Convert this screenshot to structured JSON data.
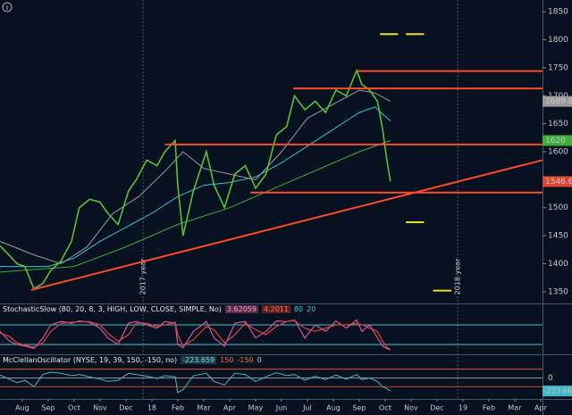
{
  "chart_data": [
    {
      "type": "line",
      "xlim": [
        -0.86,
        20.07
      ],
      "xticks": [
        {
          "value": 0,
          "label": "Aug"
        },
        {
          "value": 1,
          "label": "Sep"
        },
        {
          "value": 2,
          "label": "Oct"
        },
        {
          "value": 3,
          "label": "Nov"
        },
        {
          "value": 4,
          "label": "Dec"
        },
        {
          "value": 5,
          "label": "18"
        },
        {
          "value": 6,
          "label": "Feb"
        },
        {
          "value": 7,
          "label": "Mar"
        },
        {
          "value": 8,
          "label": "Apr"
        },
        {
          "value": 9,
          "label": "May"
        },
        {
          "value": 10,
          "label": "Jun"
        },
        {
          "value": 11,
          "label": "Jul"
        },
        {
          "value": 12,
          "label": "Aug"
        },
        {
          "value": 13,
          "label": "Sep"
        },
        {
          "value": 14,
          "label": "Oct"
        },
        {
          "value": 15,
          "label": "Nov"
        },
        {
          "value": 16,
          "label": "Dec"
        },
        {
          "value": 17,
          "label": "19"
        },
        {
          "value": 18,
          "label": "Feb"
        },
        {
          "value": 19,
          "label": "Mar"
        },
        {
          "value": 20,
          "label": "Apr"
        }
      ],
      "ylim": [
        1329,
        1871
      ],
      "yticks": [
        1350,
        1400,
        1450,
        1500,
        1550,
        1600,
        1650,
        1700,
        1750,
        1800,
        1850
      ],
      "grid": false,
      "series": [
        {
          "color": "#5cbf3a",
          "label_last": true,
          "label_bg": "#e0452e",
          "width": 1.6,
          "x": [
            -0.86,
            -0.5,
            -0.2,
            0.1,
            0.45,
            0.8,
            1.1,
            1.5,
            1.9,
            2.2,
            2.6,
            3.0,
            3.3,
            3.7,
            4.1,
            4.4,
            4.8,
            5.2,
            5.5,
            5.9,
            6.0,
            6.2,
            6.6,
            7.1,
            7.4,
            7.8,
            8.2,
            8.6,
            9.0,
            9.4,
            9.8,
            10.2,
            10.5,
            10.9,
            11.3,
            11.7,
            12.1,
            12.5,
            12.9,
            13.1,
            13.4,
            13.7,
            13.9,
            14.05,
            14.2
          ],
          "values": [
            1432,
            1415,
            1400,
            1395,
            1355,
            1365,
            1388,
            1405,
            1440,
            1500,
            1515,
            1510,
            1490,
            1470,
            1530,
            1550,
            1585,
            1575,
            1600,
            1620,
            1540,
            1450,
            1530,
            1600,
            1540,
            1500,
            1560,
            1575,
            1535,
            1560,
            1630,
            1645,
            1700,
            1675,
            1690,
            1670,
            1710,
            1700,
            1745,
            1720,
            1710,
            1690,
            1640,
            1590,
            1546.68
          ]
        },
        {
          "color": "#9a9a9a",
          "label_last": true,
          "label_bg": "#9a9a9a",
          "width": 1,
          "x": [
            -0.86,
            0.5,
            1.5,
            2.5,
            3.5,
            4.5,
            5.5,
            6.2,
            7,
            8,
            9,
            10,
            11,
            12,
            13,
            13.6,
            14.2
          ],
          "values": [
            1440,
            1415,
            1400,
            1430,
            1490,
            1520,
            1565,
            1600,
            1570,
            1560,
            1550,
            1600,
            1660,
            1685,
            1710,
            1705,
            1689.84
          ]
        },
        {
          "color": "#35c6d6",
          "label_last": false,
          "width": 1,
          "x": [
            -0.86,
            1,
            2,
            3,
            4,
            5,
            6,
            7,
            8,
            9,
            10,
            11,
            12,
            13,
            13.6,
            14.2
          ],
          "values": [
            1395,
            1395,
            1410,
            1440,
            1465,
            1490,
            1520,
            1540,
            1545,
            1555,
            1580,
            1610,
            1640,
            1670,
            1680,
            1655
          ]
        },
        {
          "color": "#3fae3a",
          "label_last": true,
          "label_bg": "#3fae3a",
          "width": 1,
          "x": [
            -0.86,
            2,
            4,
            6,
            8,
            10,
            12,
            13,
            14.2
          ],
          "values": [
            1385,
            1395,
            1430,
            1470,
            1500,
            1540,
            1580,
            1600,
            1620
          ]
        }
      ],
      "lines": [
        {
          "color": "#ff4a2a",
          "x": [
            0.34,
            20.2
          ],
          "values": [
            1353,
            1585
          ]
        },
        {
          "color": "#ff4a2a",
          "x": [
            5.5,
            20.2
          ],
          "values": [
            1613,
            1613
          ]
        },
        {
          "color": "#ff4a2a",
          "x": [
            8.8,
            20.2
          ],
          "values": [
            1527,
            1527
          ]
        },
        {
          "color": "#ff4a2a",
          "x": [
            10.45,
            20.2
          ],
          "values": [
            1713,
            1713
          ]
        },
        {
          "color": "#ff4a2a",
          "x": [
            12.9,
            20.2
          ],
          "values": [
            1744,
            1744
          ]
        },
        {
          "color": "#f0e020",
          "x": [
            13.8,
            14.5
          ],
          "values": [
            1810,
            1810
          ]
        },
        {
          "color": "#f0e020",
          "x": [
            14.8,
            15.5
          ],
          "values": [
            1810,
            1810
          ]
        },
        {
          "color": "#f0e020",
          "x": [
            14.8,
            15.5
          ],
          "values": [
            1474,
            1474
          ]
        },
        {
          "color": "#f0e020",
          "x": [
            15.85,
            16.55
          ],
          "values": [
            1352,
            1352
          ]
        }
      ],
      "markers": [
        {
          "x": 4.66,
          "label": "2017 year"
        },
        {
          "x": 16.8,
          "label": "2018 year"
        }
      ]
    },
    {
      "type": "line",
      "title": "StochasticSlow (80, 20, 8, 3, HIGH, LOW, CLOSE, SIMPLE, No)",
      "xlim": [
        -0.86,
        20.07
      ],
      "ylim": [
        -10,
        140
      ],
      "yticks": [
        80,
        20
      ],
      "series": [
        {
          "color": "#d3559c",
          "header_bg": "#5a2a45",
          "x": [
            -0.86,
            -0.5,
            -0.2,
            0.1,
            0.45,
            0.8,
            1.1,
            1.5,
            1.9,
            2.2,
            2.6,
            3.0,
            3.3,
            3.7,
            4.1,
            4.4,
            4.8,
            5.2,
            5.5,
            5.9,
            6.0,
            6.2,
            6.6,
            7.1,
            7.4,
            7.8,
            8.2,
            8.6,
            9.0,
            9.4,
            9.8,
            10.2,
            10.5,
            10.9,
            11.3,
            11.7,
            12.1,
            12.5,
            12.9,
            13.1,
            13.4,
            13.7,
            13.9,
            14.05,
            14.2
          ],
          "values": [
            60,
            30,
            20,
            15,
            8,
            40,
            80,
            90,
            85,
            92,
            88,
            70,
            40,
            20,
            85,
            90,
            80,
            70,
            90,
            85,
            20,
            10,
            60,
            90,
            40,
            15,
            85,
            90,
            40,
            60,
            92,
            90,
            95,
            40,
            80,
            60,
            92,
            70,
            95,
            60,
            80,
            40,
            15,
            8,
            3.62059
          ]
        },
        {
          "color": "#e0403a",
          "header_bg": "#5a2020",
          "x": [
            -0.86,
            -0.5,
            -0.2,
            0.1,
            0.45,
            0.8,
            1.1,
            1.5,
            1.9,
            2.2,
            2.6,
            3.0,
            3.3,
            3.7,
            4.1,
            4.4,
            4.8,
            5.2,
            5.5,
            5.9,
            6.0,
            6.2,
            6.6,
            7.1,
            7.4,
            7.8,
            8.2,
            8.6,
            9.0,
            9.4,
            9.8,
            10.2,
            10.5,
            10.9,
            11.3,
            11.7,
            12.1,
            12.5,
            12.9,
            13.1,
            13.4,
            13.7,
            13.9,
            14.05,
            14.2
          ],
          "values": [
            55,
            45,
            25,
            18,
            12,
            25,
            60,
            85,
            88,
            89,
            90,
            80,
            55,
            30,
            50,
            85,
            85,
            75,
            80,
            88,
            50,
            15,
            35,
            75,
            65,
            25,
            50,
            85,
            65,
            50,
            75,
            90,
            93,
            70,
            60,
            70,
            80,
            80,
            85,
            80,
            70,
            60,
            30,
            12,
            4.2011
          ]
        }
      ],
      "line_color": "#35c6d6"
    },
    {
      "type": "line",
      "title": "McClellanOscillator (NYSE, 19, 39, 150, -150, no)",
      "xlim": [
        -0.86,
        20.07
      ],
      "ylim": [
        -360,
        375
      ],
      "yticks": [
        150,
        -150,
        0
      ],
      "current": {
        "value": -223.659,
        "label": "-223.66"
      },
      "series": [
        {
          "color": "#3fb8c8",
          "x": [
            -0.86,
            -0.5,
            -0.2,
            0.1,
            0.45,
            0.8,
            1.1,
            1.5,
            1.9,
            2.2,
            2.6,
            3.0,
            3.3,
            3.7,
            4.1,
            4.4,
            4.8,
            5.2,
            5.5,
            5.9,
            6.0,
            6.2,
            6.6,
            7.1,
            7.4,
            7.8,
            8.2,
            8.6,
            9.0,
            9.4,
            9.8,
            10.2,
            10.5,
            10.9,
            11.3,
            11.7,
            12.1,
            12.5,
            12.9,
            13.1,
            13.4,
            13.7,
            13.9,
            14.05,
            14.2
          ],
          "values": [
            50,
            -20,
            -80,
            -40,
            -150,
            60,
            100,
            80,
            40,
            60,
            20,
            -20,
            -60,
            -40,
            80,
            60,
            30,
            -10,
            40,
            20,
            -250,
            -200,
            40,
            80,
            -60,
            -120,
            80,
            60,
            -60,
            20,
            90,
            40,
            60,
            -40,
            30,
            -30,
            50,
            -20,
            60,
            -30,
            0,
            -60,
            -150,
            -180,
            -223.659
          ]
        }
      ],
      "line_colors": [
        "#ff5a3a",
        "#ff5a3a",
        "#bbbbbb"
      ]
    }
  ]
}
